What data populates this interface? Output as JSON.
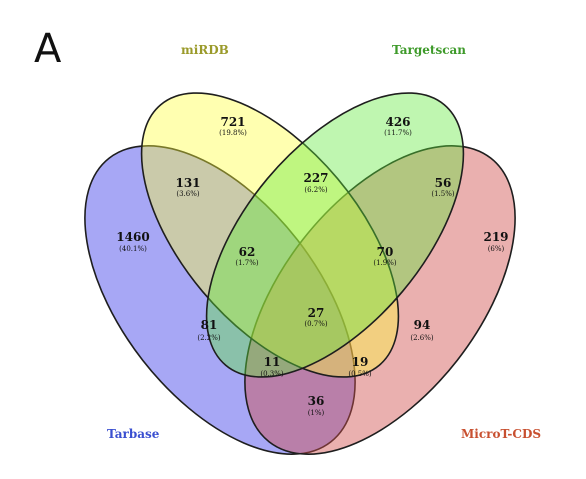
{
  "panel_label": "A",
  "sets": [
    {
      "key": "tarbase",
      "name": "Tarbase",
      "color": "#3c3ce8",
      "label_color": "#3a4fd0"
    },
    {
      "key": "mirdb",
      "name": "miRDB",
      "color": "#ffff3a",
      "label_color": "#9a9a2a"
    },
    {
      "key": "targetscan",
      "name": "Targetscan",
      "color": "#60e83a",
      "label_color": "#3e9a2a"
    },
    {
      "key": "microt",
      "name": "MicroT-CDS",
      "color": "#d0504e",
      "label_color": "#c85030"
    }
  ],
  "regions": [
    {
      "key": "mirdb_only",
      "sets": [
        "mirdb"
      ],
      "count": "721",
      "percent": "(19.8%)"
    },
    {
      "key": "targetscan_only",
      "sets": [
        "targetscan"
      ],
      "count": "426",
      "percent": "(11.7%)"
    },
    {
      "key": "tarbase_only",
      "sets": [
        "tarbase"
      ],
      "count": "1460",
      "percent": "(40.1%)"
    },
    {
      "key": "microt_only",
      "sets": [
        "microt"
      ],
      "count": "219",
      "percent": "(6%)"
    },
    {
      "key": "tarbase_mirdb",
      "sets": [
        "tarbase",
        "mirdb"
      ],
      "count": "131",
      "percent": "(3.6%)"
    },
    {
      "key": "mirdb_targetscan",
      "sets": [
        "mirdb",
        "targetscan"
      ],
      "count": "227",
      "percent": "(6.2%)"
    },
    {
      "key": "targetscan_microt",
      "sets": [
        "targetscan",
        "microt"
      ],
      "count": "56",
      "percent": "(1.5%)"
    },
    {
      "key": "tarbase_mirdb_targetscan",
      "sets": [
        "tarbase",
        "mirdb",
        "targetscan"
      ],
      "count": "62",
      "percent": "(1.7%)"
    },
    {
      "key": "mirdb_targetscan_microt",
      "sets": [
        "mirdb",
        "targetscan",
        "microt"
      ],
      "count": "70",
      "percent": "(1.9%)"
    },
    {
      "key": "all_four",
      "sets": [
        "tarbase",
        "mirdb",
        "targetscan",
        "microt"
      ],
      "count": "27",
      "percent": "(0.7%)"
    },
    {
      "key": "tarbase_targetscan",
      "sets": [
        "tarbase",
        "targetscan"
      ],
      "count": "81",
      "percent": "(2.2%)"
    },
    {
      "key": "mirdb_microt",
      "sets": [
        "mirdb",
        "microt"
      ],
      "count": "94",
      "percent": "(2.6%)"
    },
    {
      "key": "tarbase_targetscan_microt",
      "sets": [
        "tarbase",
        "targetscan",
        "microt"
      ],
      "count": "11",
      "percent": "(0.3%)"
    },
    {
      "key": "tarbase_mirdb_microt",
      "sets": [
        "tarbase",
        "mirdb",
        "microt"
      ],
      "count": "19",
      "percent": "(0.5%)"
    },
    {
      "key": "tarbase_microt",
      "sets": [
        "tarbase",
        "microt"
      ],
      "count": "36",
      "percent": "(1%)"
    }
  ]
}
